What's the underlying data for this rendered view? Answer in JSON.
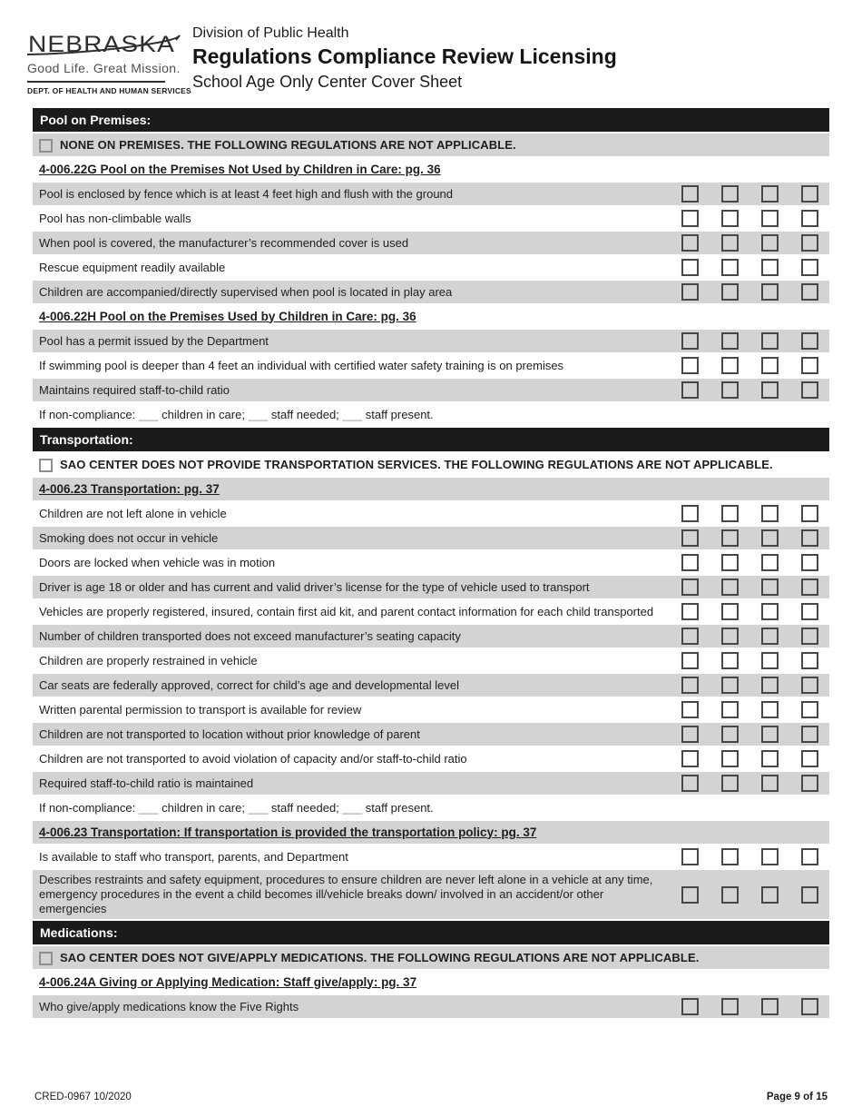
{
  "header": {
    "logo": {
      "wordmark": "NEBRASKA",
      "tagline": "Good Life. Great Mission.",
      "dept": "DEPT. OF HEALTH AND HUMAN SERVICES"
    },
    "division": "Division of Public Health",
    "title": "Regulations Compliance Review Licensing",
    "subtitle": "School Age Only Center Cover Sheet"
  },
  "colors": {
    "section_bar": "#1b1b1b",
    "row_shaded": "#d3d3d3",
    "checkbox_border": "#474747"
  },
  "checkbox_columns": 4,
  "sections": [
    {
      "title": "Pool on Premises:",
      "rows": [
        {
          "type": "na",
          "shaded": true,
          "text": "NONE ON PREMISES. THE FOLLOWING REGULATIONS ARE NOT APPLICABLE."
        },
        {
          "type": "heading",
          "shaded": false,
          "text": "4-006.22G Pool on the Premises Not Used by Children in Care: pg. 36"
        },
        {
          "type": "item",
          "shaded": true,
          "text": "Pool is enclosed by fence which is at least 4 feet high and flush with the ground"
        },
        {
          "type": "item",
          "shaded": false,
          "text": "Pool has non-climbable walls"
        },
        {
          "type": "item",
          "shaded": true,
          "text": "When pool is covered, the manufacturer’s recommended cover is used"
        },
        {
          "type": "item",
          "shaded": false,
          "text": "Rescue equipment readily available"
        },
        {
          "type": "item",
          "shaded": true,
          "text": "Children are accompanied/directly supervised when pool is located in play area"
        },
        {
          "type": "heading",
          "shaded": false,
          "text": "4-006.22H Pool on the Premises Used by Children in Care: pg. 36"
        },
        {
          "type": "item",
          "shaded": true,
          "text": "Pool has a permit issued by the Department"
        },
        {
          "type": "item",
          "shaded": false,
          "text": "If swimming pool is deeper than 4 feet an individual with certified water safety training is on premises"
        },
        {
          "type": "item",
          "shaded": true,
          "text": "Maintains required staff-to-child ratio"
        },
        {
          "type": "fill",
          "shaded": false,
          "text": "If non-compliance: ___  children in care; ___ staff needed; ___ staff present."
        }
      ]
    },
    {
      "title": "Transportation:",
      "rows": [
        {
          "type": "na",
          "shaded": false,
          "wrap": true,
          "text": "SAO CENTER DOES NOT PROVIDE TRANSPORTATION SERVICES. THE FOLLOWING REGULATIONS ARE NOT APPLICABLE."
        },
        {
          "type": "heading",
          "shaded": true,
          "text": "4-006.23 Transportation: pg. 37"
        },
        {
          "type": "item",
          "shaded": false,
          "text": "Children are not left alone in vehicle"
        },
        {
          "type": "item",
          "shaded": true,
          "text": "Smoking does not occur in vehicle"
        },
        {
          "type": "item",
          "shaded": false,
          "text": "Doors are locked when vehicle was in motion"
        },
        {
          "type": "item",
          "shaded": true,
          "text": "Driver is age 18 or older and has current and valid driver’s license for the type of vehicle used to transport"
        },
        {
          "type": "item",
          "shaded": false,
          "text": "Vehicles are properly registered, insured, contain first aid kit, and parent contact information for each child transported"
        },
        {
          "type": "item",
          "shaded": true,
          "text": "Number of children transported does not exceed manufacturer’s seating capacity"
        },
        {
          "type": "item",
          "shaded": false,
          "text": "Children are properly restrained in vehicle"
        },
        {
          "type": "item",
          "shaded": true,
          "text": "Car seats are federally approved, correct for child’s age and developmental level"
        },
        {
          "type": "item",
          "shaded": false,
          "text": "Written parental permission to transport is available for review"
        },
        {
          "type": "item",
          "shaded": true,
          "text": "Children are not transported to location without prior knowledge of parent"
        },
        {
          "type": "item",
          "shaded": false,
          "text": "Children are not transported to avoid violation of capacity and/or staff-to-child ratio"
        },
        {
          "type": "item",
          "shaded": true,
          "text": "Required staff-to-child ratio is maintained"
        },
        {
          "type": "fill",
          "shaded": false,
          "text": "If non-compliance: ___  children in care; ___ staff needed; ___ staff present."
        },
        {
          "type": "heading",
          "shaded": true,
          "text": "4-006.23 Transportation: If transportation is provided the transportation policy: pg. 37"
        },
        {
          "type": "item",
          "shaded": false,
          "text": "Is available to staff who transport, parents, and Department"
        },
        {
          "type": "item",
          "shaded": true,
          "text": "Describes restraints and safety equipment, procedures to ensure children are never left alone in a vehicle at any time, emergency procedures in the event a child becomes ill/vehicle breaks down/ involved in an accident/or other emergencies"
        }
      ]
    },
    {
      "title": "Medications:",
      "rows": [
        {
          "type": "na",
          "shaded": true,
          "text": "SAO CENTER DOES NOT GIVE/APPLY MEDICATIONS. THE FOLLOWING REGULATIONS ARE NOT APPLICABLE."
        },
        {
          "type": "heading",
          "shaded": false,
          "text": "4-006.24A Giving or Applying Medication: Staff give/apply: pg. 37"
        },
        {
          "type": "item",
          "shaded": true,
          "text": "Who give/apply medications know the Five Rights"
        }
      ]
    }
  ],
  "footer": {
    "left": "CRED-0967  10/2020",
    "right": "Page 9 of 15"
  }
}
